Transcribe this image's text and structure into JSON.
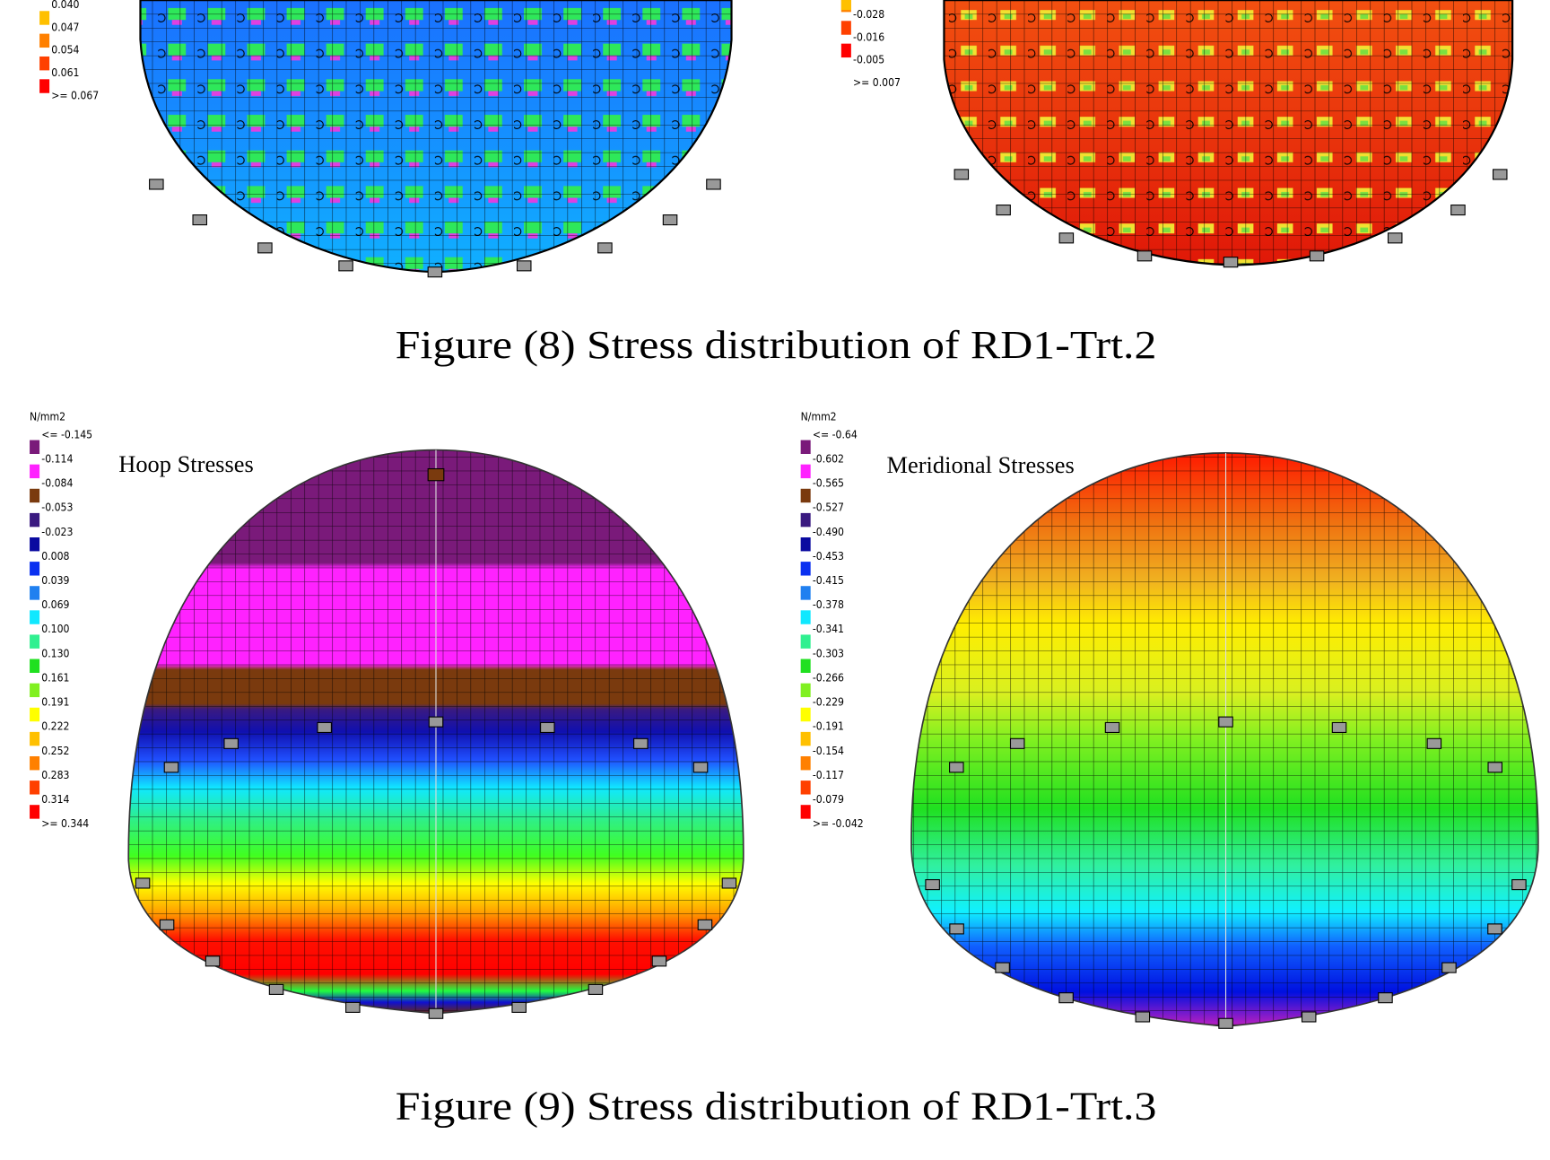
{
  "figure_8": {
    "left_legend": [
      "0.040",
      "0.047",
      "0.054",
      "0.061",
      ">= 0.067"
    ],
    "right_legend": [
      "-0.028",
      "-0.016",
      "-0.005",
      ">= 0.007"
    ],
    "caption": "Figure (8) Stress distribution of RD1-Trt.2"
  },
  "figure_9": {
    "left_panel": {
      "unit": "N/mm2",
      "title": "Hoop Stresses",
      "legend": [
        "<= -0.145",
        "-0.114",
        "-0.084",
        "-0.053",
        "-0.023",
        "0.008",
        "0.039",
        "0.069",
        "0.100",
        "0.130",
        "0.161",
        "0.191",
        "0.222",
        "0.252",
        "0.283",
        "0.314",
        ">= 0.344"
      ]
    },
    "right_panel": {
      "unit": "N/mm2",
      "title": "Meridional Stresses",
      "legend": [
        "<= -0.64",
        "-0.602",
        "-0.565",
        "-0.527",
        "-0.490",
        "-0.453",
        "-0.415",
        "-0.378",
        "-0.341",
        "-0.303",
        "-0.266",
        "-0.229",
        "-0.191",
        "-0.154",
        "-0.117",
        "-0.079",
        ">= -0.042"
      ]
    },
    "caption": "Figure (9) Stress distribution of RD1-Trt.3"
  }
}
